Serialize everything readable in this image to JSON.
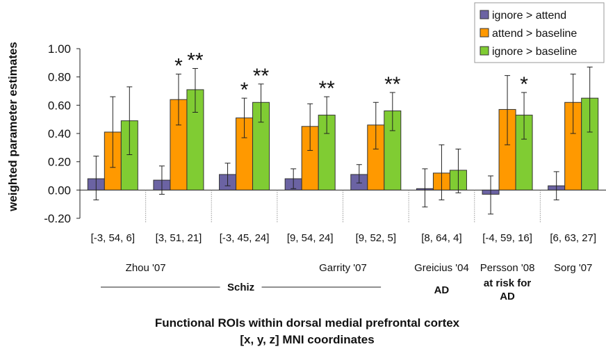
{
  "chart_data": {
    "type": "bar",
    "ylabel": "weighted parameter estimates",
    "xlabel_lines": [
      "Functional ROIs within dorsal medial prefrontal cortex",
      "[x, y, z] MNI coordinates"
    ],
    "ylim": [
      -0.2,
      1.0
    ],
    "yticks": [
      "-0.20",
      "0.00",
      "0.20",
      "0.40",
      "0.60",
      "0.80",
      "1.00"
    ],
    "grid": false,
    "legend_position": "top-right",
    "categories": [
      "[-3, 54, 6]",
      "[3, 51, 21]",
      "[-3, 45, 24]",
      "[9, 54, 24]",
      "[9, 52, 5]",
      "[8, 64, 4]",
      "[-4, 59, 16]",
      "[6, 63, 27]"
    ],
    "series": [
      {
        "name": "ignore > attend",
        "color": "#6b63a3",
        "values": [
          0.08,
          0.07,
          0.11,
          0.08,
          0.11,
          0.01,
          -0.03,
          0.03
        ],
        "err_low": [
          -0.07,
          -0.03,
          0.03,
          0.01,
          0.05,
          -0.12,
          -0.17,
          -0.07
        ],
        "err_high": [
          0.24,
          0.17,
          0.19,
          0.15,
          0.18,
          0.15,
          0.1,
          0.13
        ]
      },
      {
        "name": "attend > baseline",
        "color": "#ff9900",
        "values": [
          0.41,
          0.64,
          0.51,
          0.45,
          0.46,
          0.12,
          0.57,
          0.62
        ],
        "err_low": [
          0.16,
          0.46,
          0.37,
          0.28,
          0.29,
          -0.07,
          0.32,
          0.4
        ],
        "err_high": [
          0.66,
          0.82,
          0.65,
          0.61,
          0.62,
          0.32,
          0.81,
          0.82
        ]
      },
      {
        "name": "ignore > baseline",
        "color": "#80cc33",
        "values": [
          0.49,
          0.71,
          0.62,
          0.53,
          0.56,
          0.14,
          0.53,
          0.65
        ],
        "err_low": [
          0.25,
          0.55,
          0.48,
          0.4,
          0.42,
          -0.02,
          0.36,
          0.41
        ],
        "err_high": [
          0.73,
          0.86,
          0.75,
          0.66,
          0.69,
          0.29,
          0.69,
          0.87
        ]
      }
    ],
    "annotations": [
      {
        "category": 1,
        "text": "*",
        "over_series": 1
      },
      {
        "category": 1,
        "text": "**",
        "over_series": 2
      },
      {
        "category": 2,
        "text": "*",
        "over_series": 1
      },
      {
        "category": 2,
        "text": "**",
        "over_series": 2
      },
      {
        "category": 3,
        "text": "**",
        "over_series": 2
      },
      {
        "category": 4,
        "text": "**",
        "over_series": 2
      },
      {
        "category": 6,
        "text": "*",
        "over_series": 2
      }
    ],
    "studies": [
      {
        "label": "Zhou '07",
        "category": 0.5
      },
      {
        "label": "Garrity '07",
        "category": 3.5
      },
      {
        "label": "Greicius '04",
        "category": 5
      },
      {
        "label": "Persson '08",
        "category": 6
      },
      {
        "label": "Sorg '07",
        "category": 7
      }
    ],
    "groups": [
      {
        "label": "Schiz",
        "from": 0,
        "to": 4,
        "rule": true
      },
      {
        "label": "AD",
        "at": 5
      },
      {
        "label_lines": [
          "at risk for",
          "AD"
        ],
        "at": 6
      }
    ]
  }
}
